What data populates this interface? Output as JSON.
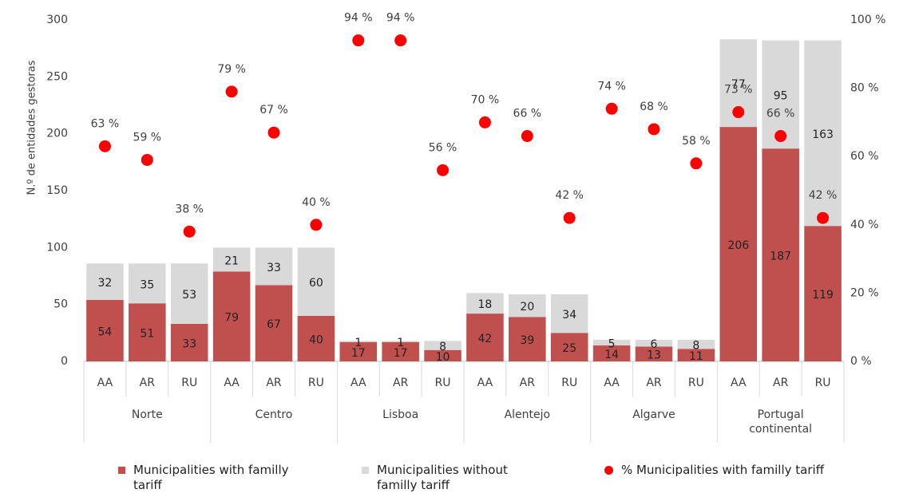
{
  "chart_data": {
    "type": "bar",
    "stacked": true,
    "y_label": "N.º de entidades gestoras",
    "categories": [
      "AA",
      "AR",
      "RU",
      "AA",
      "AR",
      "RU",
      "AA",
      "AR",
      "RU",
      "AA",
      "AR",
      "RU",
      "AA",
      "AR",
      "RU",
      "AA",
      "AR",
      "RU"
    ],
    "groups": [
      "Norte",
      "Centro",
      "Lisboa",
      "Alentejo",
      "Algarve",
      "Portugal continental"
    ],
    "series": [
      {
        "name": "Municipalities with familly tariff",
        "color": "#c0504d",
        "type": "bar",
        "values": [
          54,
          51,
          33,
          79,
          67,
          40,
          17,
          17,
          10,
          42,
          39,
          25,
          14,
          13,
          11,
          206,
          187,
          119
        ]
      },
      {
        "name": "Municipalities without familly tariff",
        "color": "#d9d9d9",
        "type": "bar",
        "values": [
          32,
          35,
          53,
          21,
          33,
          60,
          1,
          1,
          8,
          18,
          20,
          34,
          5,
          6,
          8,
          77,
          95,
          163
        ]
      },
      {
        "name": "% Municipalities with familly tariff",
        "color": "#ff0000",
        "type": "scatter",
        "axis": "y2",
        "values": [
          63,
          59,
          38,
          79,
          67,
          40,
          94,
          94,
          56,
          70,
          66,
          42,
          74,
          68,
          58,
          73,
          66,
          42
        ],
        "value_labels": [
          "63 %",
          "59 %",
          "38 %",
          "79 %",
          "67 %",
          "40 %",
          "94 %",
          "94 %",
          "56 %",
          "70 %",
          "66 %",
          "42 %",
          "74 %",
          "68 %",
          "58 %",
          "73 %",
          "66 %",
          "42 %"
        ]
      }
    ],
    "ylim": [
      0,
      300
    ],
    "yticks": [
      0,
      50,
      100,
      150,
      200,
      250,
      300
    ],
    "y2lim": [
      0,
      100
    ],
    "y2ticks": [
      {
        "value": 0,
        "label": "0 %"
      },
      {
        "value": 20,
        "label": "20 %"
      },
      {
        "value": 40,
        "label": "40 %"
      },
      {
        "value": 60,
        "label": "60 %"
      },
      {
        "value": 80,
        "label": "80 %"
      },
      {
        "value": 100,
        "label": "100 %"
      }
    ],
    "grid": false
  }
}
